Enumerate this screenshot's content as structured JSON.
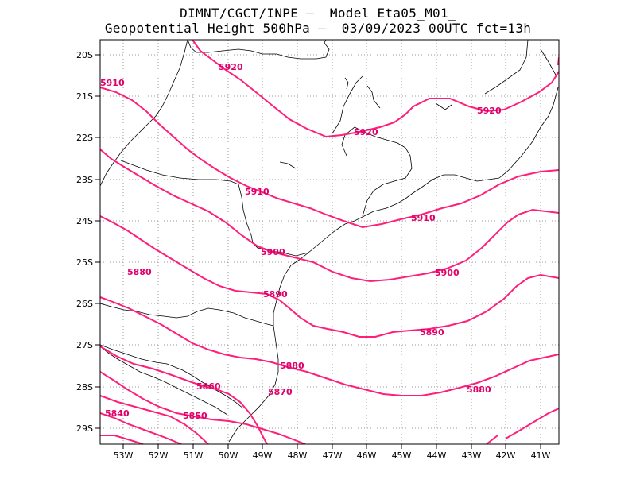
{
  "header": {
    "line1": "DIMNT/CGCT/INPE –  Model Eta05_M01_",
    "line2": "Geopotential Height 500hPa –  03/09/2023 00UTC fct=13h"
  },
  "colors": {
    "contour": "#ff1e78",
    "border": "#000000",
    "grid": "#9a9a9a"
  },
  "axes": {
    "lat_labels": [
      "20S",
      "21S",
      "22S",
      "23S",
      "24S",
      "25S",
      "26S",
      "27S",
      "28S",
      "29S"
    ],
    "lon_labels": [
      "53W",
      "52W",
      "51W",
      "50W",
      "49W",
      "48W",
      "47W",
      "46W",
      "45W",
      "44W",
      "43W",
      "42W",
      "41W"
    ]
  },
  "contour_labels": [
    "5920",
    "5920",
    "5920",
    "5910",
    "5910",
    "5910",
    "5900",
    "5900",
    "5890",
    "5890",
    "5880",
    "5880",
    "5880",
    "5870",
    "5860",
    "5850",
    "5840"
  ]
}
